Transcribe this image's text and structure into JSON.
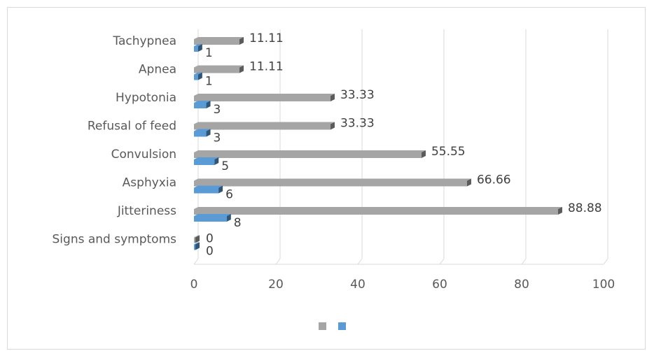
{
  "chart_data": {
    "type": "bar",
    "orientation": "horizontal",
    "style": "3d-clustered",
    "categories": [
      "Signs and symptoms",
      "Jitteriness",
      "Asphyxia",
      "Convulsion",
      "Refusal of feed",
      "Hypotonia",
      "Apnea",
      "Tachypnea"
    ],
    "series": [
      {
        "values": [
          0,
          88.88,
          66.66,
          55.55,
          33.33,
          33.33,
          11.11,
          11.11
        ],
        "labels": [
          "0",
          "88.88",
          "66.66",
          "55.55",
          "33.33",
          "33.33",
          "11.11",
          "11.11"
        ],
        "color": "#a5a5a5"
      },
      {
        "values": [
          0,
          8,
          6,
          5,
          3,
          3,
          1,
          1
        ],
        "labels": [
          "0",
          "8",
          "6",
          "5",
          "3",
          "3",
          "1",
          "1"
        ],
        "color": "#5b9bd5"
      }
    ],
    "xlim": [
      0,
      100
    ],
    "xticks": [
      0,
      20,
      40,
      60,
      80,
      100
    ],
    "xtick_labels": [
      "0",
      "20",
      "40",
      "60",
      "80",
      "100"
    ],
    "grid": true,
    "legend": "bottom-center"
  }
}
